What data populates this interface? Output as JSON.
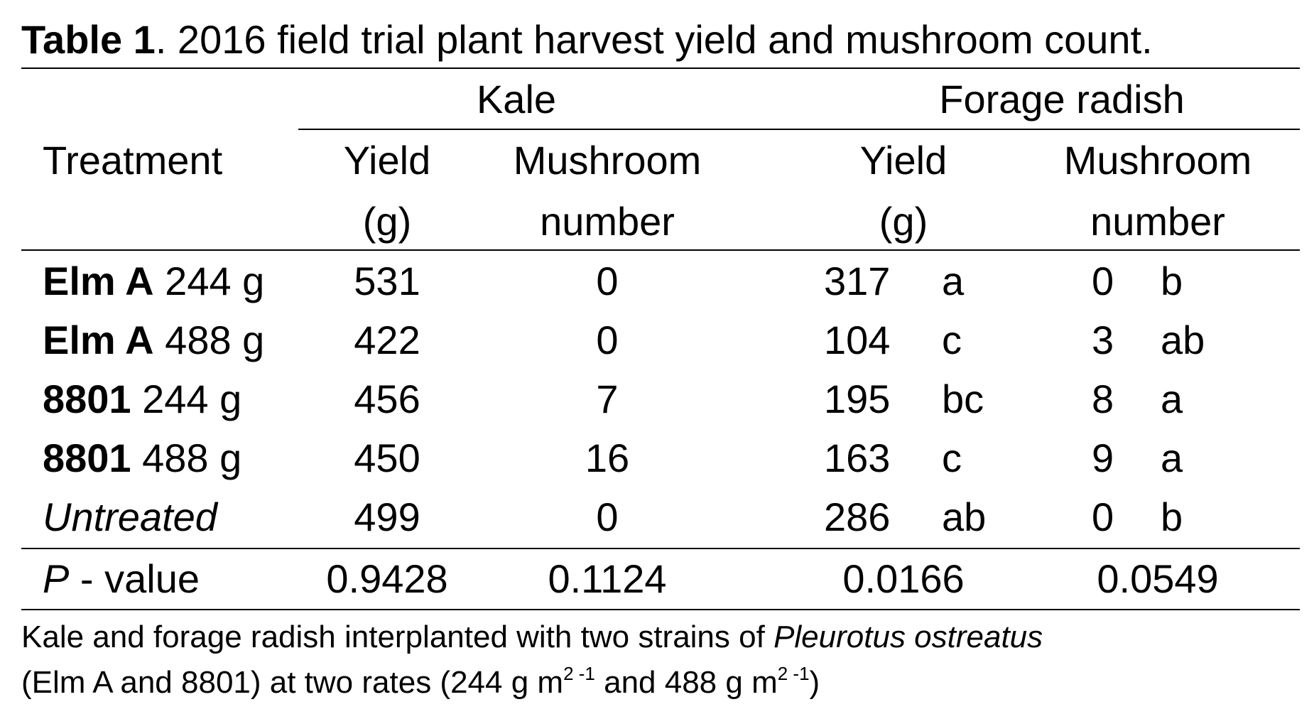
{
  "caption": {
    "label": "Table 1",
    "text": ". 2016 field trial plant harvest yield and mushroom count."
  },
  "header": {
    "treatment": "Treatment",
    "groups": [
      "Kale",
      "Forage radish"
    ],
    "yield_line1": "Yield",
    "yield_line2": "(g)",
    "mushroom_line1": "Mushroom",
    "mushroom_line2": "number"
  },
  "rows": [
    {
      "strain": "Elm A",
      "rate": " 244 g",
      "kale_yield": "531",
      "kale_mush": "0",
      "fr_yield": "317",
      "fr_yield_grp": "a",
      "fr_mush": "0",
      "fr_mush_grp": "b"
    },
    {
      "strain": "Elm A",
      "rate": " 488 g",
      "kale_yield": "422",
      "kale_mush": "0",
      "fr_yield": "104",
      "fr_yield_grp": "c",
      "fr_mush": "3",
      "fr_mush_grp": "ab"
    },
    {
      "strain": "8801",
      "rate": " 244 g",
      "kale_yield": "456",
      "kale_mush": "7",
      "fr_yield": "195",
      "fr_yield_grp": "bc",
      "fr_mush": "8",
      "fr_mush_grp": "a"
    },
    {
      "strain": "8801",
      "rate": " 488 g",
      "kale_yield": "450",
      "kale_mush": "16",
      "fr_yield": "163",
      "fr_yield_grp": "c",
      "fr_mush": "9",
      "fr_mush_grp": "a"
    },
    {
      "strain": "Untreated",
      "rate": "",
      "kale_yield": "499",
      "kale_mush": "0",
      "fr_yield": "286",
      "fr_yield_grp": "ab",
      "fr_mush": "0",
      "fr_mush_grp": "b"
    }
  ],
  "pvalue": {
    "p": "P",
    "label": " - value",
    "kale_yield": "0.9428",
    "kale_mush": "0.1124",
    "fr_yield": "0.0166",
    "fr_mush": "0.0549"
  },
  "footnote": {
    "line1_a": "Kale and forage radish interplanted with two strains of ",
    "species": "Pleurotus ostreatus",
    "line2_a": "(Elm A and 8801) at two rates (244 g m",
    "sup1": "2 -1",
    "line2_b": " and 488 g m",
    "sup2": "2 -1",
    "line2_c": ")"
  }
}
